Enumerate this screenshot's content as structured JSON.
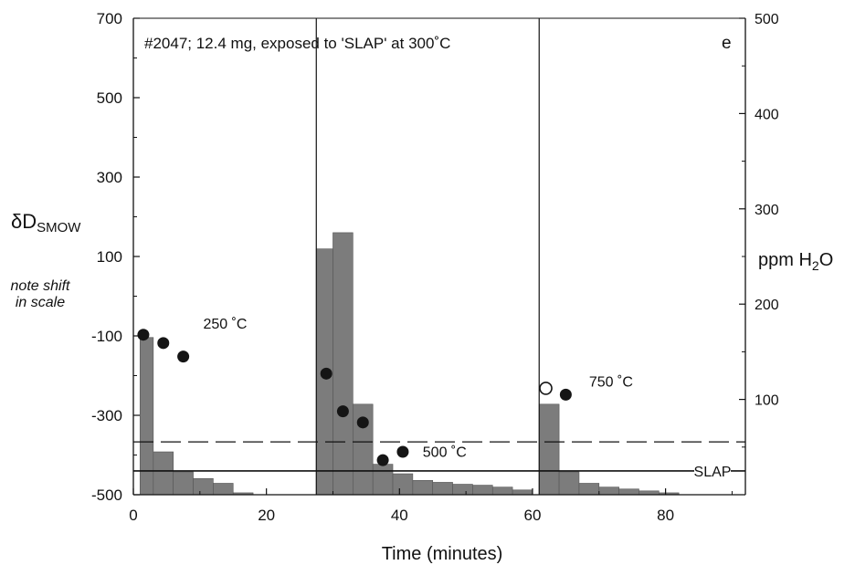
{
  "chart_data": {
    "type": "bar",
    "annotation_title": "#2047; 12.4 mg, exposed to 'SLAP' at 300˚C",
    "panel_label": "e",
    "xlabel": "Time (minutes)",
    "ylabel_left_main": "δD",
    "ylabel_left_sub": "SMOW",
    "ylabel_right_main": "ppm H",
    "ylabel_right_sub": "2",
    "ylabel_right_end": "O",
    "side_note_line1": "note shift",
    "side_note_line2": "in scale",
    "xlim": [
      0,
      92
    ],
    "ylim_left": [
      -500,
      700
    ],
    "ylim_right": [
      0,
      500
    ],
    "x_ticks": [
      0,
      20,
      40,
      60,
      80
    ],
    "x_tick_labels": [
      "0",
      "20",
      "40",
      "60",
      "80"
    ],
    "left_ticks": [
      -500,
      -300,
      -100,
      100,
      300,
      500,
      700
    ],
    "left_tick_labels": [
      "-500",
      "-300",
      "-100",
      "100",
      "300",
      "500",
      "700"
    ],
    "right_ticks": [
      100,
      200,
      300,
      400,
      500
    ],
    "right_tick_labels": [
      "100",
      "200",
      "300",
      "400",
      "500"
    ],
    "vertical_lines_x": [
      27.5,
      61
    ],
    "slap_line": {
      "label": "SLAP",
      "y_left": -440
    },
    "dashed_line": {
      "y_left": -367
    },
    "bars": [
      {
        "x0": 1,
        "x1": 3,
        "ppm": 165
      },
      {
        "x0": 3,
        "x1": 6,
        "ppm": 45
      },
      {
        "x0": 6,
        "x1": 9,
        "ppm": 24
      },
      {
        "x0": 9,
        "x1": 12,
        "ppm": 17
      },
      {
        "x0": 12,
        "x1": 15,
        "ppm": 12
      },
      {
        "x0": 15,
        "x1": 18,
        "ppm": 2
      },
      {
        "x0": 27.5,
        "x1": 30,
        "ppm": 258
      },
      {
        "x0": 30,
        "x1": 33,
        "ppm": 275
      },
      {
        "x0": 33,
        "x1": 36,
        "ppm": 95
      },
      {
        "x0": 36,
        "x1": 39,
        "ppm": 32
      },
      {
        "x0": 39,
        "x1": 42,
        "ppm": 22
      },
      {
        "x0": 42,
        "x1": 45,
        "ppm": 15
      },
      {
        "x0": 45,
        "x1": 48,
        "ppm": 13
      },
      {
        "x0": 48,
        "x1": 51,
        "ppm": 11
      },
      {
        "x0": 51,
        "x1": 54,
        "ppm": 10
      },
      {
        "x0": 54,
        "x1": 57,
        "ppm": 8
      },
      {
        "x0": 57,
        "x1": 60,
        "ppm": 5
      },
      {
        "x0": 61,
        "x1": 64,
        "ppm": 95
      },
      {
        "x0": 64,
        "x1": 67,
        "ppm": 24
      },
      {
        "x0": 67,
        "x1": 70,
        "ppm": 12
      },
      {
        "x0": 70,
        "x1": 73,
        "ppm": 8
      },
      {
        "x0": 73,
        "x1": 76,
        "ppm": 6
      },
      {
        "x0": 76,
        "x1": 79,
        "ppm": 4
      },
      {
        "x0": 79,
        "x1": 82,
        "ppm": 2
      }
    ],
    "points": [
      {
        "x": 1.5,
        "y": -97,
        "filled": true
      },
      {
        "x": 4.5,
        "y": -118,
        "filled": true
      },
      {
        "x": 7.5,
        "y": -152,
        "filled": true
      },
      {
        "x": 29,
        "y": -195,
        "filled": true
      },
      {
        "x": 31.5,
        "y": -290,
        "filled": true
      },
      {
        "x": 34.5,
        "y": -318,
        "filled": true
      },
      {
        "x": 37.5,
        "y": -413,
        "filled": true
      },
      {
        "x": 40.5,
        "y": -392,
        "filled": true
      },
      {
        "x": 62,
        "y": -232,
        "filled": false
      },
      {
        "x": 65,
        "y": -248,
        "filled": true
      }
    ],
    "temperature_labels": [
      {
        "text": "250 ˚C",
        "x": 10.5,
        "y": -82
      },
      {
        "text": "500 ˚C",
        "x": 43.5,
        "y": -405
      },
      {
        "text": "750 ˚C",
        "x": 68.5,
        "y": -228
      }
    ],
    "colors": {
      "bar_fill": "#7c7c7c",
      "bar_edge": "#555555",
      "point": "#151515",
      "axis": "#111111"
    }
  }
}
